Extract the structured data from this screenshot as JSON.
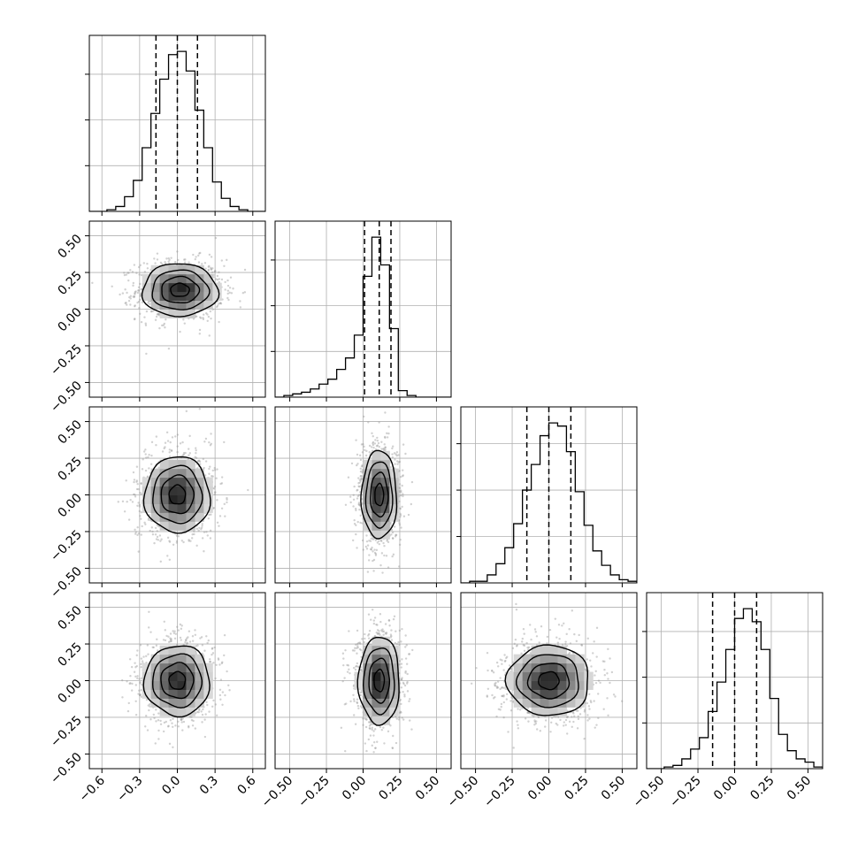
{
  "chart_data": {
    "type": "corner",
    "n_params": 4,
    "grid": true,
    "axes": [
      {
        "range": [
          -0.7,
          0.7
        ],
        "ticks": [
          -0.6,
          -0.3,
          0.0,
          0.3,
          0.6
        ],
        "tick_labels": [
          "−0.6",
          "−0.3",
          "0.0",
          "0.3",
          "0.6"
        ]
      },
      {
        "range": [
          -0.6,
          0.6
        ],
        "ticks": [
          -0.5,
          -0.25,
          0.0,
          0.25,
          0.5
        ],
        "tick_labels": [
          "−0.50",
          "−0.25",
          "0.00",
          "0.25",
          "0.50"
        ]
      },
      {
        "range": [
          -0.6,
          0.6
        ],
        "ticks": [
          -0.5,
          -0.25,
          0.0,
          0.25,
          0.5
        ],
        "tick_labels": [
          "−0.50",
          "−0.25",
          "0.00",
          "0.25",
          "0.50"
        ]
      },
      {
        "range": [
          -0.6,
          0.6
        ],
        "ticks": [
          -0.5,
          -0.25,
          0.0,
          0.25,
          0.5
        ],
        "tick_labels": [
          "−0.50",
          "−0.25",
          "0.00",
          "0.25",
          "0.50"
        ]
      }
    ],
    "marginals": [
      {
        "param": 0,
        "bin_edges": [
          -0.7,
          -0.63,
          -0.56,
          -0.49,
          -0.42,
          -0.35,
          -0.28,
          -0.21,
          -0.14,
          -0.07,
          0.0,
          0.07,
          0.14,
          0.21,
          0.28,
          0.35,
          0.42,
          0.49,
          0.56,
          0.63,
          0.7
        ],
        "counts": [
          0,
          0,
          1,
          3,
          9,
          19,
          39,
          60,
          81,
          96,
          98,
          86,
          62,
          39,
          18,
          8,
          3,
          1,
          0,
          0
        ],
        "quantiles": [
          -0.17,
          0.0,
          0.16
        ]
      },
      {
        "param": 1,
        "bin_edges": [
          -0.6,
          -0.54,
          -0.48,
          -0.42,
          -0.36,
          -0.3,
          -0.24,
          -0.18,
          -0.12,
          -0.06,
          0.0,
          0.06,
          0.12,
          0.18,
          0.24,
          0.3,
          0.36,
          0.42,
          0.48,
          0.54,
          0.6
        ],
        "counts": [
          0,
          1,
          2,
          3,
          5,
          8,
          11,
          17,
          24,
          38,
          74,
          98,
          81,
          42,
          4,
          1,
          0,
          0,
          0,
          0
        ],
        "quantiles": [
          0.01,
          0.11,
          0.19
        ]
      },
      {
        "param": 2,
        "bin_edges": [
          -0.6,
          -0.54,
          -0.48,
          -0.42,
          -0.36,
          -0.3,
          -0.24,
          -0.18,
          -0.12,
          -0.06,
          0.0,
          0.06,
          0.12,
          0.18,
          0.24,
          0.3,
          0.36,
          0.42,
          0.48,
          0.54,
          0.6
        ],
        "counts": [
          0,
          1,
          1,
          5,
          12,
          22,
          37,
          58,
          74,
          92,
          100,
          98,
          82,
          57,
          36,
          20,
          11,
          5,
          2,
          1
        ],
        "quantiles": [
          -0.15,
          0.0,
          0.15
        ]
      },
      {
        "param": 3,
        "bin_edges": [
          -0.6,
          -0.54,
          -0.48,
          -0.42,
          -0.36,
          -0.3,
          -0.24,
          -0.18,
          -0.12,
          -0.06,
          0.0,
          0.06,
          0.12,
          0.18,
          0.24,
          0.3,
          0.36,
          0.42,
          0.48,
          0.54,
          0.6
        ],
        "counts": [
          0,
          0,
          1,
          2,
          6,
          12,
          19,
          35,
          53,
          73,
          92,
          98,
          90,
          73,
          43,
          21,
          11,
          6,
          4,
          1
        ],
        "quantiles": [
          -0.15,
          0.0,
          0.15
        ]
      }
    ],
    "joints": [
      {
        "x_param": 0,
        "y_param": 1,
        "center": [
          0.02,
          0.13
        ],
        "spread": [
          0.15,
          0.09
        ]
      },
      {
        "x_param": 0,
        "y_param": 2,
        "center": [
          0.0,
          0.0
        ],
        "spread": [
          0.13,
          0.13
        ]
      },
      {
        "x_param": 1,
        "y_param": 2,
        "center": [
          0.11,
          0.0
        ],
        "spread": [
          0.06,
          0.15
        ]
      },
      {
        "x_param": 0,
        "y_param": 3,
        "center": [
          0.0,
          0.0
        ],
        "spread": [
          0.13,
          0.12
        ]
      },
      {
        "x_param": 1,
        "y_param": 3,
        "center": [
          0.11,
          0.0
        ],
        "spread": [
          0.07,
          0.15
        ]
      },
      {
        "x_param": 2,
        "y_param": 3,
        "center": [
          0.0,
          0.0
        ],
        "spread": [
          0.14,
          0.12
        ]
      }
    ],
    "contour_levels_sigma": [
      0.5,
      1.0,
      1.5,
      2.0
    ]
  }
}
